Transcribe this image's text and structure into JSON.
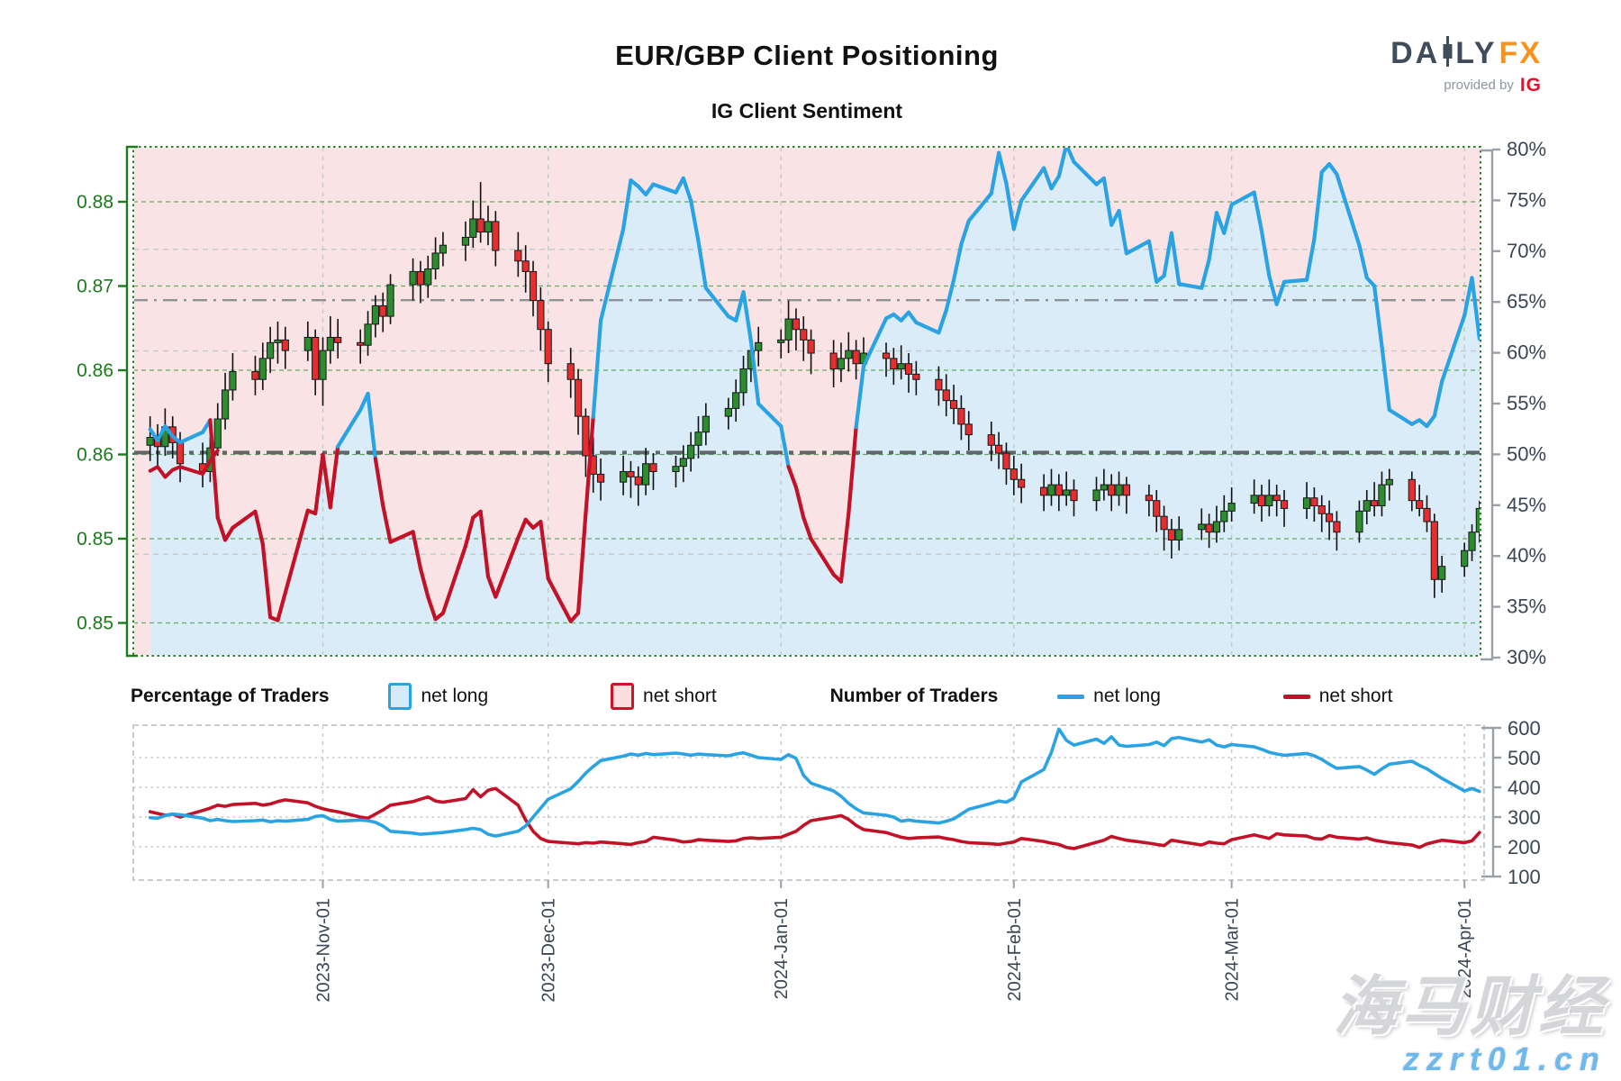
{
  "header": {
    "title": "EUR/GBP Client Positioning",
    "subtitle": "IG Client Sentiment"
  },
  "logo": {
    "brand_left": "DA",
    "brand_right": "LY",
    "brand_fx": "FX",
    "provided_by": "provided by",
    "ig": "IG"
  },
  "legend": {
    "pct_header": "Percentage of Traders",
    "pct_net_long": "net long",
    "pct_net_short": "net short",
    "num_header": "Number of Traders",
    "num_net_long": "net long",
    "num_net_short": "net short"
  },
  "watermark": {
    "line1": "海马财经",
    "line2": "zzrt01.cn"
  },
  "colors": {
    "net_long_line": "#2aa3e4",
    "net_short_line": "#c31227",
    "long_fill": "#daecf8",
    "short_fill": "#fae3e4",
    "candle_up": "#2d8c2d",
    "candle_down": "#e62e2e",
    "price_axis": "#1b7a1b",
    "pct_axis": "#3a4654",
    "grid_green": "#4da04d",
    "grid_gray": "#c3c9cd",
    "ref_dark": "#4b4f52",
    "ref_mid": "#8d9296"
  },
  "chart_data": [
    {
      "type": "candlestick+line",
      "name": "sentiment_percent_chart",
      "start_date": "2023-10-09",
      "x_unit": "weekday",
      "price_axis_labels": [
        "0.88",
        "0.87",
        "0.86",
        "0.86",
        "0.85",
        "0.85"
      ],
      "pct_axis": {
        "min": 30,
        "max": 80,
        "step": 5,
        "unit": "%"
      },
      "reference_lines_pct": [
        65,
        50
      ],
      "month_ticks": [
        "2023-Nov-01",
        "2023-Dec-01",
        "2024-Jan-01",
        "2024-Feb-01",
        "2024-Mar-01",
        "2024-Apr-01"
      ],
      "gray_grid_pct": [
        70,
        60,
        40
      ],
      "net_long_pct": [
        52.3,
        51.2,
        52.6,
        51.6,
        51.0,
        52.0,
        53.2,
        43.6,
        41.4,
        42.6,
        44.2,
        41.0,
        33.8,
        33.5,
        36.2,
        44.3,
        44.0,
        49.8,
        44.6,
        50.6,
        54.2,
        55.8,
        49.4,
        44.8,
        41.2,
        42.2,
        38.6,
        35.8,
        33.6,
        34.2,
        40.8,
        43.6,
        44.2,
        37.8,
        35.8,
        41.6,
        43.4,
        42.6,
        43.2,
        37.6,
        33.4,
        34.2,
        44.0,
        53.5,
        63.0,
        72.0,
        76.8,
        76.2,
        75.4,
        76.4,
        75.6,
        77.0,
        74.8,
        70.8,
        66.2,
        63.4,
        63.0,
        65.8,
        61.0,
        54.8,
        52.6,
        48.6,
        46.6,
        43.6,
        41.5,
        38.0,
        37.3,
        44.0,
        52.5,
        58.5,
        63.2,
        63.6,
        63.0,
        63.8,
        62.8,
        61.8,
        64.0,
        67.0,
        70.5,
        72.8,
        75.5,
        79.5,
        76.5,
        72.0,
        74.8,
        78.0,
        76.0,
        77.2,
        80.3,
        78.6,
        76.4,
        77.0,
        72.4,
        73.8,
        69.6,
        70.8,
        66.8,
        67.4,
        71.6,
        66.6,
        66.2,
        69.0,
        73.6,
        71.6,
        74.4,
        75.6,
        71.8,
        67.4,
        64.6,
        66.8,
        67.0,
        71.0,
        77.6,
        78.4,
        77.4,
        70.4,
        67.2,
        66.4,
        60.5,
        54.2,
        52.8,
        53.2,
        52.6,
        53.6,
        57.0,
        63.5,
        67.2,
        61.2
      ],
      "net_short_pct_visible_head": [
        48.2,
        48.6,
        47.6,
        48.3,
        48.6,
        47.9,
        49.2,
        50.2
      ],
      "candles_ohlc": [
        [
          0.859,
          0.8612,
          0.8578,
          0.8596
        ],
        [
          0.8596,
          0.8606,
          0.8572,
          0.8589
        ],
        [
          0.8589,
          0.8618,
          0.8582,
          0.8604
        ],
        [
          0.8604,
          0.8612,
          0.858,
          0.8592
        ],
        [
          0.8592,
          0.86,
          0.8562,
          0.8576
        ],
        [
          0.8576,
          0.8592,
          0.8558,
          0.857
        ],
        [
          0.857,
          0.8596,
          0.8562,
          0.8588
        ],
        [
          0.8588,
          0.8622,
          0.8582,
          0.861
        ],
        [
          0.861,
          0.8645,
          0.8602,
          0.8632
        ],
        [
          0.8632,
          0.866,
          0.8624,
          0.8646
        ],
        [
          0.8646,
          0.8658,
          0.8628,
          0.864
        ],
        [
          0.864,
          0.8668,
          0.8632,
          0.8656
        ],
        [
          0.8656,
          0.868,
          0.8645,
          0.8668
        ],
        [
          0.8668,
          0.8684,
          0.8652,
          0.867
        ],
        [
          0.867,
          0.868,
          0.8648,
          0.8662
        ],
        [
          0.8662,
          0.8684,
          0.8654,
          0.8672
        ],
        [
          0.8672,
          0.8678,
          0.8628,
          0.864
        ],
        [
          0.864,
          0.8672,
          0.862,
          0.8662
        ],
        [
          0.8662,
          0.8688,
          0.8652,
          0.8672
        ],
        [
          0.8672,
          0.8686,
          0.8656,
          0.8668
        ],
        [
          0.8668,
          0.8678,
          0.8652,
          0.8666
        ],
        [
          0.8666,
          0.8692,
          0.8658,
          0.8682
        ],
        [
          0.8682,
          0.8704,
          0.8672,
          0.8696
        ],
        [
          0.8696,
          0.8706,
          0.8676,
          0.8688
        ],
        [
          0.8688,
          0.872,
          0.8682,
          0.8712
        ],
        [
          0.8712,
          0.8732,
          0.87,
          0.8722
        ],
        [
          0.8722,
          0.873,
          0.8698,
          0.8712
        ],
        [
          0.8712,
          0.8734,
          0.8702,
          0.8724
        ],
        [
          0.8724,
          0.8748,
          0.8716,
          0.8736
        ],
        [
          0.8736,
          0.8752,
          0.8726,
          0.8742
        ],
        [
          0.8742,
          0.876,
          0.873,
          0.8748
        ],
        [
          0.8748,
          0.8776,
          0.874,
          0.8762
        ],
        [
          0.8762,
          0.879,
          0.8744,
          0.8752
        ],
        [
          0.8752,
          0.8772,
          0.8742,
          0.876
        ],
        [
          0.876,
          0.8768,
          0.8726,
          0.8738
        ],
        [
          0.8738,
          0.8752,
          0.8718,
          0.873
        ],
        [
          0.873,
          0.8742,
          0.8706,
          0.8722
        ],
        [
          0.8722,
          0.873,
          0.8688,
          0.87
        ],
        [
          0.87,
          0.871,
          0.8662,
          0.8678
        ],
        [
          0.8678,
          0.8684,
          0.8638,
          0.8652
        ],
        [
          0.8652,
          0.8664,
          0.8626,
          0.864
        ],
        [
          0.864,
          0.8648,
          0.8598,
          0.8612
        ],
        [
          0.8612,
          0.8618,
          0.8566,
          0.8582
        ],
        [
          0.8582,
          0.8596,
          0.8554,
          0.8568
        ],
        [
          0.8568,
          0.858,
          0.8548,
          0.8562
        ],
        [
          0.8562,
          0.8582,
          0.8552,
          0.857
        ],
        [
          0.857,
          0.8578,
          0.855,
          0.8566
        ],
        [
          0.8566,
          0.8574,
          0.8544,
          0.856
        ],
        [
          0.856,
          0.8588,
          0.8552,
          0.8576
        ],
        [
          0.8576,
          0.8584,
          0.8556,
          0.857
        ],
        [
          0.857,
          0.8582,
          0.8558,
          0.8574
        ],
        [
          0.8574,
          0.859,
          0.8562,
          0.858
        ],
        [
          0.858,
          0.86,
          0.857,
          0.859
        ],
        [
          0.859,
          0.8612,
          0.858,
          0.86
        ],
        [
          0.86,
          0.8622,
          0.859,
          0.8612
        ],
        [
          0.8612,
          0.8626,
          0.8602,
          0.8618
        ],
        [
          0.8618,
          0.864,
          0.8608,
          0.863
        ],
        [
          0.863,
          0.8658,
          0.862,
          0.8648
        ],
        [
          0.8648,
          0.8674,
          0.8638,
          0.8662
        ],
        [
          0.8662,
          0.868,
          0.865,
          0.8668
        ],
        [
          0.8668,
          0.8678,
          0.8656,
          0.867
        ],
        [
          0.867,
          0.87,
          0.866,
          0.8686
        ],
        [
          0.8686,
          0.8694,
          0.8662,
          0.8678
        ],
        [
          0.8678,
          0.8688,
          0.8654,
          0.867
        ],
        [
          0.867,
          0.8678,
          0.8644,
          0.866
        ],
        [
          0.866,
          0.867,
          0.8634,
          0.8648
        ],
        [
          0.8648,
          0.8668,
          0.8638,
          0.8656
        ],
        [
          0.8656,
          0.8676,
          0.8646,
          0.8662
        ],
        [
          0.8662,
          0.867,
          0.864,
          0.8652
        ],
        [
          0.8652,
          0.8672,
          0.8644,
          0.866
        ],
        [
          0.866,
          0.8668,
          0.8642,
          0.8656
        ],
        [
          0.8656,
          0.8664,
          0.8636,
          0.8648
        ],
        [
          0.8648,
          0.8666,
          0.864,
          0.8652
        ],
        [
          0.8652,
          0.866,
          0.863,
          0.8644
        ],
        [
          0.8644,
          0.8654,
          0.8628,
          0.864
        ],
        [
          0.864,
          0.865,
          0.862,
          0.8632
        ],
        [
          0.8632,
          0.8644,
          0.8612,
          0.8624
        ],
        [
          0.8624,
          0.8636,
          0.8606,
          0.8618
        ],
        [
          0.8618,
          0.8628,
          0.8594,
          0.8606
        ],
        [
          0.8606,
          0.8616,
          0.8586,
          0.8598
        ],
        [
          0.8598,
          0.8608,
          0.8578,
          0.859
        ],
        [
          0.859,
          0.86,
          0.8572,
          0.8584
        ],
        [
          0.8584,
          0.8592,
          0.856,
          0.8572
        ],
        [
          0.8572,
          0.8582,
          0.8552,
          0.8564
        ],
        [
          0.8564,
          0.8576,
          0.8546,
          0.8558
        ],
        [
          0.8558,
          0.8568,
          0.854,
          0.8552
        ],
        [
          0.8552,
          0.8572,
          0.8544,
          0.856
        ],
        [
          0.856,
          0.8568,
          0.854,
          0.8552
        ],
        [
          0.8552,
          0.857,
          0.8544,
          0.8556
        ],
        [
          0.8556,
          0.8564,
          0.8536,
          0.8548
        ],
        [
          0.8548,
          0.8566,
          0.854,
          0.8556
        ],
        [
          0.8556,
          0.8572,
          0.8548,
          0.856
        ],
        [
          0.856,
          0.8568,
          0.854,
          0.8552
        ],
        [
          0.8552,
          0.857,
          0.8544,
          0.856
        ],
        [
          0.856,
          0.8566,
          0.8538,
          0.8552
        ],
        [
          0.8552,
          0.856,
          0.8536,
          0.8548
        ],
        [
          0.8548,
          0.8556,
          0.8524,
          0.8536
        ],
        [
          0.8536,
          0.8544,
          0.851,
          0.8526
        ],
        [
          0.8526,
          0.8534,
          0.8504,
          0.8518
        ],
        [
          0.8518,
          0.8536,
          0.851,
          0.8526
        ],
        [
          0.8526,
          0.8542,
          0.8518,
          0.853
        ],
        [
          0.853,
          0.8538,
          0.8512,
          0.8524
        ],
        [
          0.8524,
          0.8544,
          0.8516,
          0.8532
        ],
        [
          0.8532,
          0.8552,
          0.8524,
          0.854
        ],
        [
          0.854,
          0.8558,
          0.8532,
          0.8546
        ],
        [
          0.8546,
          0.8564,
          0.8538,
          0.8552
        ],
        [
          0.8552,
          0.856,
          0.8532,
          0.8544
        ],
        [
          0.8544,
          0.8564,
          0.8536,
          0.8552
        ],
        [
          0.8552,
          0.856,
          0.8536,
          0.8548
        ],
        [
          0.8548,
          0.8556,
          0.8528,
          0.8542
        ],
        [
          0.8542,
          0.8562,
          0.8534,
          0.855
        ],
        [
          0.855,
          0.8558,
          0.8532,
          0.8544
        ],
        [
          0.8544,
          0.8552,
          0.8524,
          0.8538
        ],
        [
          0.8538,
          0.8548,
          0.8518,
          0.8532
        ],
        [
          0.8532,
          0.854,
          0.851,
          0.8524
        ],
        [
          0.8524,
          0.8548,
          0.8516,
          0.854
        ],
        [
          0.854,
          0.8556,
          0.853,
          0.8548
        ],
        [
          0.8548,
          0.8562,
          0.8536,
          0.8544
        ],
        [
          0.8544,
          0.857,
          0.8536,
          0.856
        ],
        [
          0.856,
          0.8572,
          0.8548,
          0.8564
        ],
        [
          0.8564,
          0.857,
          0.854,
          0.8548
        ],
        [
          0.8548,
          0.856,
          0.8536,
          0.8542
        ],
        [
          0.8542,
          0.8552,
          0.8524,
          0.8532
        ],
        [
          0.8532,
          0.8538,
          0.8474,
          0.8488
        ],
        [
          0.8488,
          0.8506,
          0.8478,
          0.8498
        ],
        [
          0.8498,
          0.8516,
          0.849,
          0.851
        ],
        [
          0.851,
          0.853,
          0.8502,
          0.8524
        ],
        [
          0.8524,
          0.8548,
          0.8516,
          0.8542
        ]
      ]
    },
    {
      "type": "line",
      "name": "number_of_traders_chart",
      "count_axis": {
        "min": 100,
        "max": 600,
        "step": 100
      },
      "x_tick_labels": [
        "2023-Nov-01",
        "2023-Dec-01",
        "2024-Jan-01",
        "2024-Feb-01",
        "2024-Mar-01",
        "2024-Apr-01"
      ],
      "net_long_count": [
        298,
        296,
        305,
        310,
        308,
        296,
        288,
        292,
        288,
        285,
        288,
        290,
        284,
        288,
        286,
        292,
        302,
        305,
        292,
        286,
        290,
        288,
        282,
        270,
        252,
        246,
        242,
        244,
        246,
        248,
        258,
        262,
        258,
        242,
        236,
        252,
        270,
        300,
        330,
        360,
        395,
        420,
        448,
        470,
        490,
        505,
        512,
        508,
        514,
        510,
        515,
        512,
        508,
        512,
        510,
        506,
        512,
        516,
        508,
        500,
        494,
        510,
        498,
        440,
        414,
        388,
        370,
        346,
        328,
        314,
        306,
        300,
        286,
        290,
        286,
        280,
        286,
        294,
        310,
        326,
        346,
        354,
        350,
        364,
        418,
        460,
        518,
        596,
        558,
        542,
        562,
        548,
        570,
        542,
        538,
        544,
        552,
        540,
        564,
        568,
        552,
        560,
        542,
        536,
        544,
        536,
        528,
        518,
        512,
        508,
        514,
        506,
        494,
        478,
        464,
        470,
        458,
        444,
        462,
        478,
        488,
        474,
        462,
        446,
        430,
        388,
        396,
        386
      ],
      "net_short_count": [
        318,
        312,
        306,
        310,
        300,
        322,
        330,
        340,
        336,
        342,
        346,
        340,
        344,
        352,
        358,
        348,
        336,
        328,
        322,
        318,
        300,
        296,
        310,
        324,
        340,
        352,
        360,
        368,
        354,
        350,
        362,
        392,
        368,
        390,
        396,
        340,
        290,
        252,
        228,
        218,
        212,
        210,
        214,
        212,
        216,
        210,
        208,
        214,
        218,
        232,
        222,
        216,
        218,
        224,
        222,
        218,
        220,
        228,
        230,
        228,
        232,
        242,
        252,
        272,
        288,
        300,
        305,
        292,
        272,
        258,
        248,
        240,
        232,
        228,
        230,
        233,
        228,
        224,
        218,
        214,
        210,
        208,
        212,
        216,
        228,
        218,
        212,
        208,
        198,
        194,
        215,
        222,
        235,
        228,
        222,
        212,
        208,
        204,
        222,
        218,
        206,
        216,
        212,
        210,
        224,
        240,
        234,
        228,
        244,
        240,
        236,
        228,
        226,
        238,
        232,
        226,
        230,
        222,
        218,
        214,
        206,
        198,
        210,
        216,
        222,
        214,
        220,
        248
      ]
    }
  ]
}
